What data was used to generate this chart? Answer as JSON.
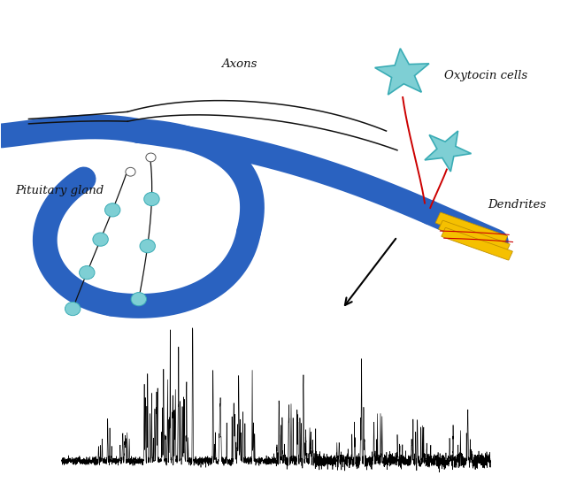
{
  "bg_color": "#ffffff",
  "blue_color": "#2a62c0",
  "black_color": "#111111",
  "teal_color": "#7ecfd4",
  "teal_edge": "#3aacb5",
  "yellow_color": "#f5c000",
  "red_color": "#cc0000",
  "pituitary_label": "Pituitary gland",
  "axons_label": "Axons",
  "oxytocin_label": "Oxytocin cells",
  "dendrites_label": "Dendrites",
  "figsize": [
    6.34,
    5.46
  ],
  "dpi": 100
}
